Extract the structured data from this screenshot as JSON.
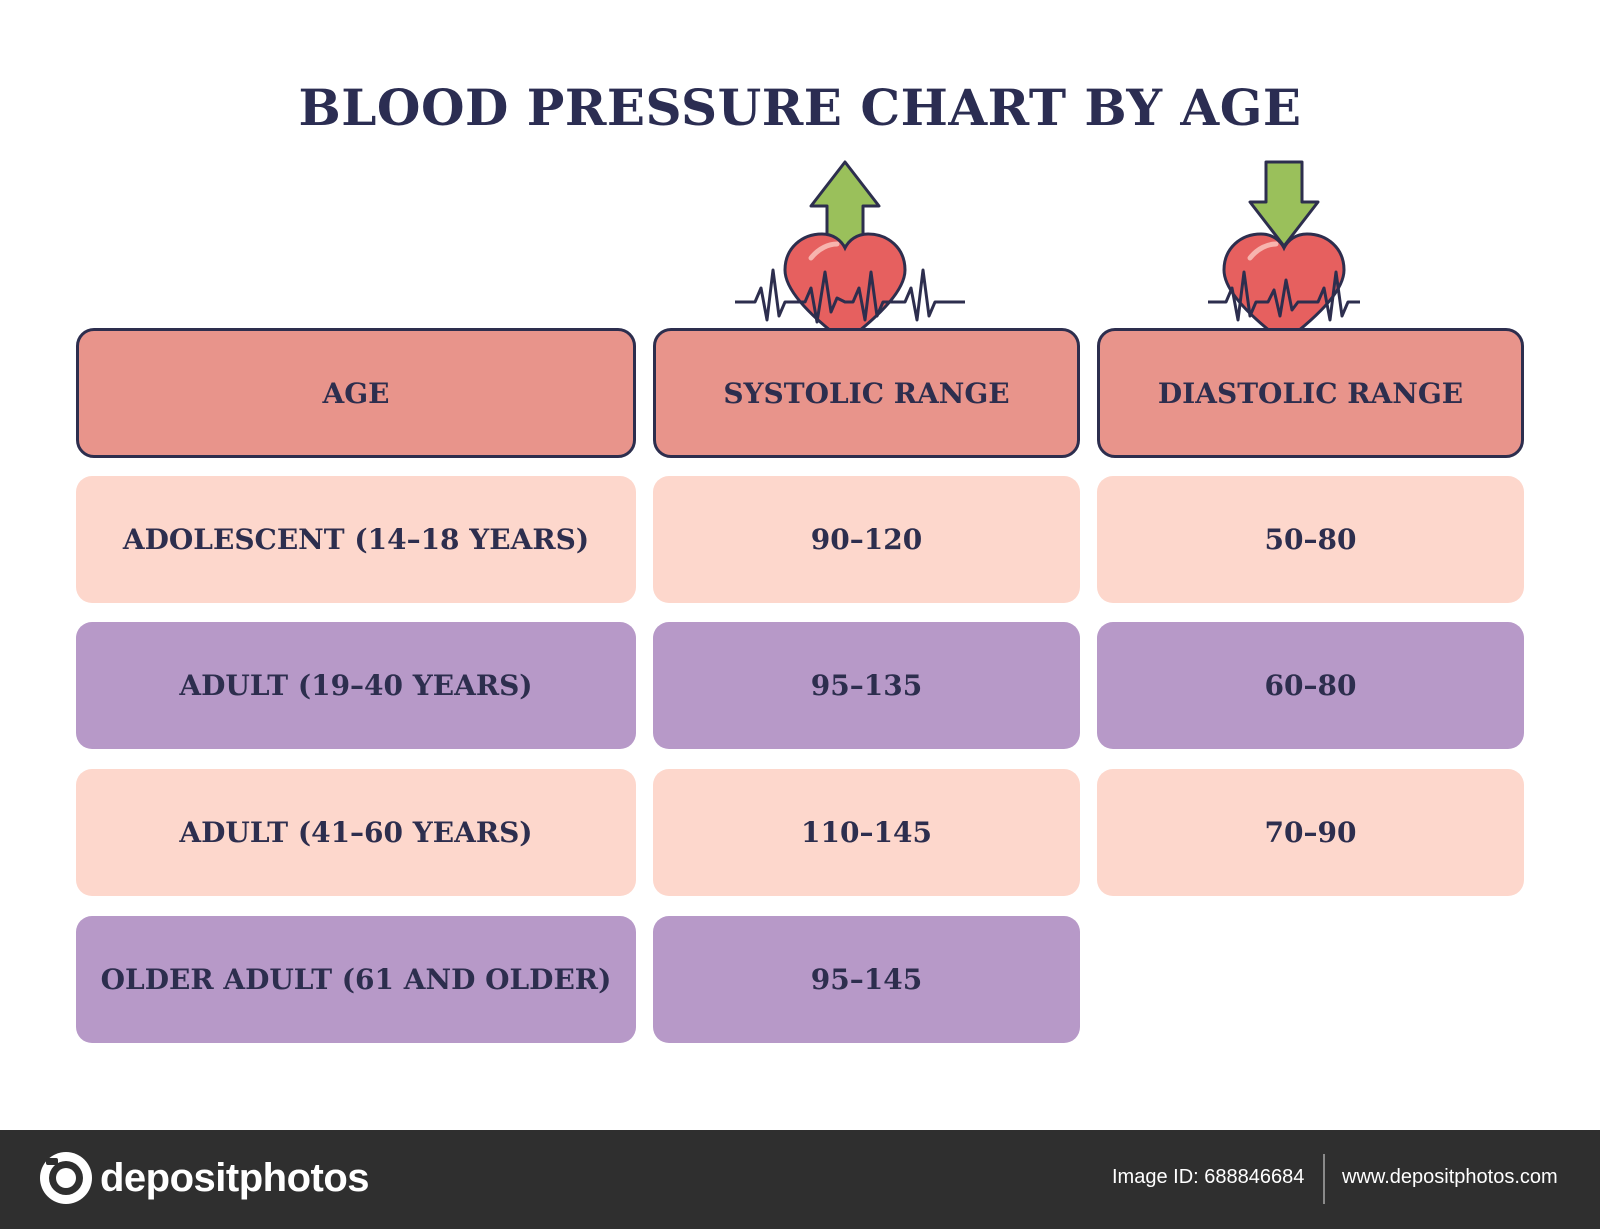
{
  "title": "BLOOD PRESSURE CHART BY AGE",
  "colors": {
    "header_fill": "#e8948b",
    "outline": "#2d2e4e",
    "row_light": "#fdd7cc",
    "row_purple": "#b799c8",
    "arrow_green": "#9ac05b",
    "heart_red": "#e6605f"
  },
  "icons": {
    "systolic": "heart-with-up-arrow-icon",
    "diastolic": "heart-with-down-arrow-icon"
  },
  "chart_data": {
    "type": "table",
    "title": "BLOOD PRESSURE CHART BY AGE",
    "columns": [
      "AGE",
      "SYSTOLIC RANGE",
      "DIASTOLIC RANGE"
    ],
    "rows": [
      {
        "age": "ADOLESCENT (14–18 YEARS)",
        "systolic": "90–120",
        "diastolic": "50–80"
      },
      {
        "age": "ADULT (19–40 YEARS)",
        "systolic": "95–135",
        "diastolic": "60–80"
      },
      {
        "age": "ADULT (41–60 YEARS)",
        "systolic": "110–145",
        "diastolic": "70–90"
      },
      {
        "age": "OLDER ADULT (61 AND OLDER)",
        "systolic": "95–145",
        "diastolic": ""
      }
    ]
  },
  "footer": {
    "brand": "depositphotos",
    "image_id": "Image ID: 688846684",
    "url": "www.depositphotos.com"
  }
}
